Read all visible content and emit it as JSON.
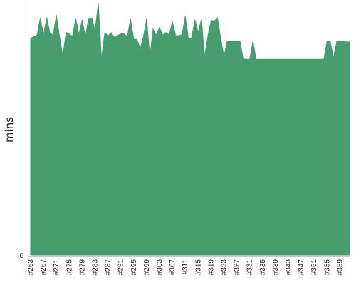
{
  "chart_data": {
    "type": "area",
    "ylabel": "mins",
    "y_tick_labels": [
      "0"
    ],
    "grid": false,
    "legend": false,
    "color": "#479d6e",
    "x_tick_step": 4,
    "categories": [
      "#263",
      "#264",
      "#265",
      "#266",
      "#267",
      "#268",
      "#269",
      "#270",
      "#271",
      "#272",
      "#273",
      "#274",
      "#275",
      "#276",
      "#277",
      "#278",
      "#279",
      "#280",
      "#281",
      "#282",
      "#283",
      "#284",
      "#285",
      "#286",
      "#287",
      "#288",
      "#289",
      "#290",
      "#291",
      "#292",
      "#293",
      "#294",
      "#295",
      "#296",
      "#297",
      "#298",
      "#299",
      "#300",
      "#301",
      "#302",
      "#303",
      "#304",
      "#305",
      "#306",
      "#307",
      "#308",
      "#309",
      "#310",
      "#311",
      "#312",
      "#313",
      "#314",
      "#315",
      "#316",
      "#317",
      "#318",
      "#319",
      "#320",
      "#321",
      "#322",
      "#323",
      "#324",
      "#325",
      "#326",
      "#327",
      "#328",
      "#329",
      "#330",
      "#331",
      "#332",
      "#333",
      "#334",
      "#335",
      "#336",
      "#337",
      "#338",
      "#339",
      "#340",
      "#341",
      "#342",
      "#343",
      "#344",
      "#345",
      "#346",
      "#347",
      "#348",
      "#349",
      "#350",
      "#351",
      "#352",
      "#353",
      "#354",
      "#355",
      "#356",
      "#357",
      "#358",
      "#359",
      "#360",
      "#361",
      "#362"
    ],
    "values": [
      86,
      86.6,
      87.2,
      94,
      87.2,
      94.2,
      88,
      87.2,
      95.1,
      86.4,
      78.7,
      88.3,
      87.6,
      86.7,
      93.8,
      87.5,
      93.3,
      86.6,
      93.8,
      94,
      88.9,
      100,
      77.7,
      88.1,
      86.9,
      88.2,
      86.2,
      87,
      87.7,
      87.7,
      86.5,
      93.6,
      85.6,
      85.5,
      81.9,
      86.5,
      93.7,
      78.5,
      89.6,
      87.2,
      90.2,
      87.2,
      88.2,
      87.3,
      92.6,
      87,
      87,
      87.4,
      94.7,
      85.6,
      86.2,
      93.4,
      88.1,
      93.7,
      78.7,
      86.8,
      93,
      92.8,
      94,
      85.9,
      78.6,
      84.7,
      84.7,
      84.7,
      84.7,
      84.7,
      77.6,
      77.6,
      77.6,
      84.8,
      77.6,
      77.6,
      77.6,
      77.6,
      77.6,
      77.6,
      77.6,
      77.6,
      77.6,
      77.6,
      77.6,
      77.6,
      77.6,
      77.6,
      77.6,
      77.6,
      77.6,
      77.6,
      77.6,
      77.6,
      77.6,
      77.6,
      84.8,
      84.6,
      78.1,
      84.7,
      84.7,
      84.7,
      84.5,
      84.5
    ],
    "ylim": [
      0,
      100
    ]
  }
}
